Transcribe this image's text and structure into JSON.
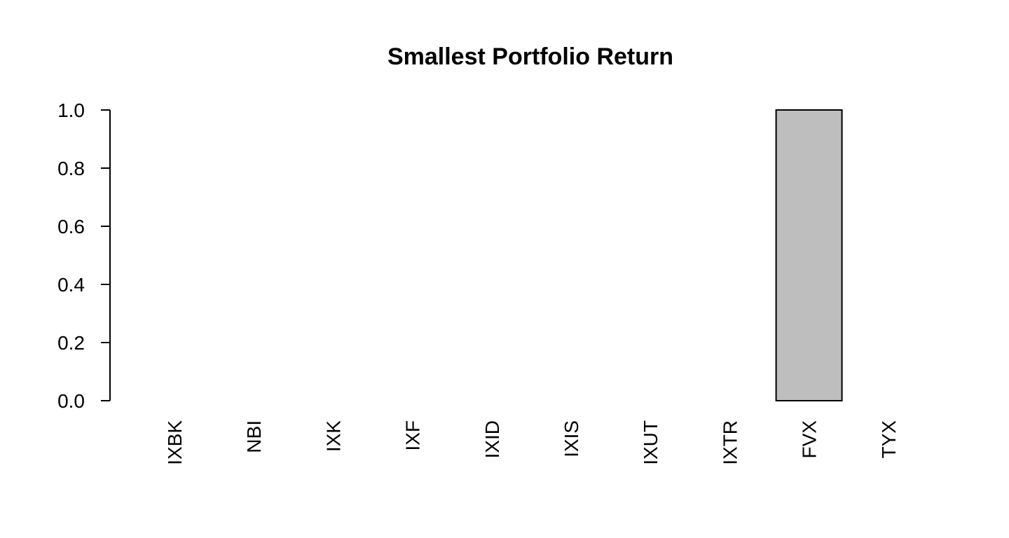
{
  "chart_data": {
    "type": "bar",
    "title": "Smallest Portfolio Return",
    "xlabel": "",
    "ylabel": "",
    "categories": [
      "IXBK",
      "NBI",
      "IXK",
      "IXF",
      "IXID",
      "IXIS",
      "IXUT",
      "IXTR",
      "FVX",
      "TYX"
    ],
    "values": [
      0,
      0,
      0,
      0,
      0,
      0,
      0,
      0,
      1.0,
      0
    ],
    "ylim": [
      0,
      1.0
    ],
    "yticks": [
      "0.0",
      "0.2",
      "0.4",
      "0.6",
      "0.8",
      "1.0"
    ],
    "grid": false,
    "bar_color": "#bebebe",
    "edge_color": "#000000"
  }
}
